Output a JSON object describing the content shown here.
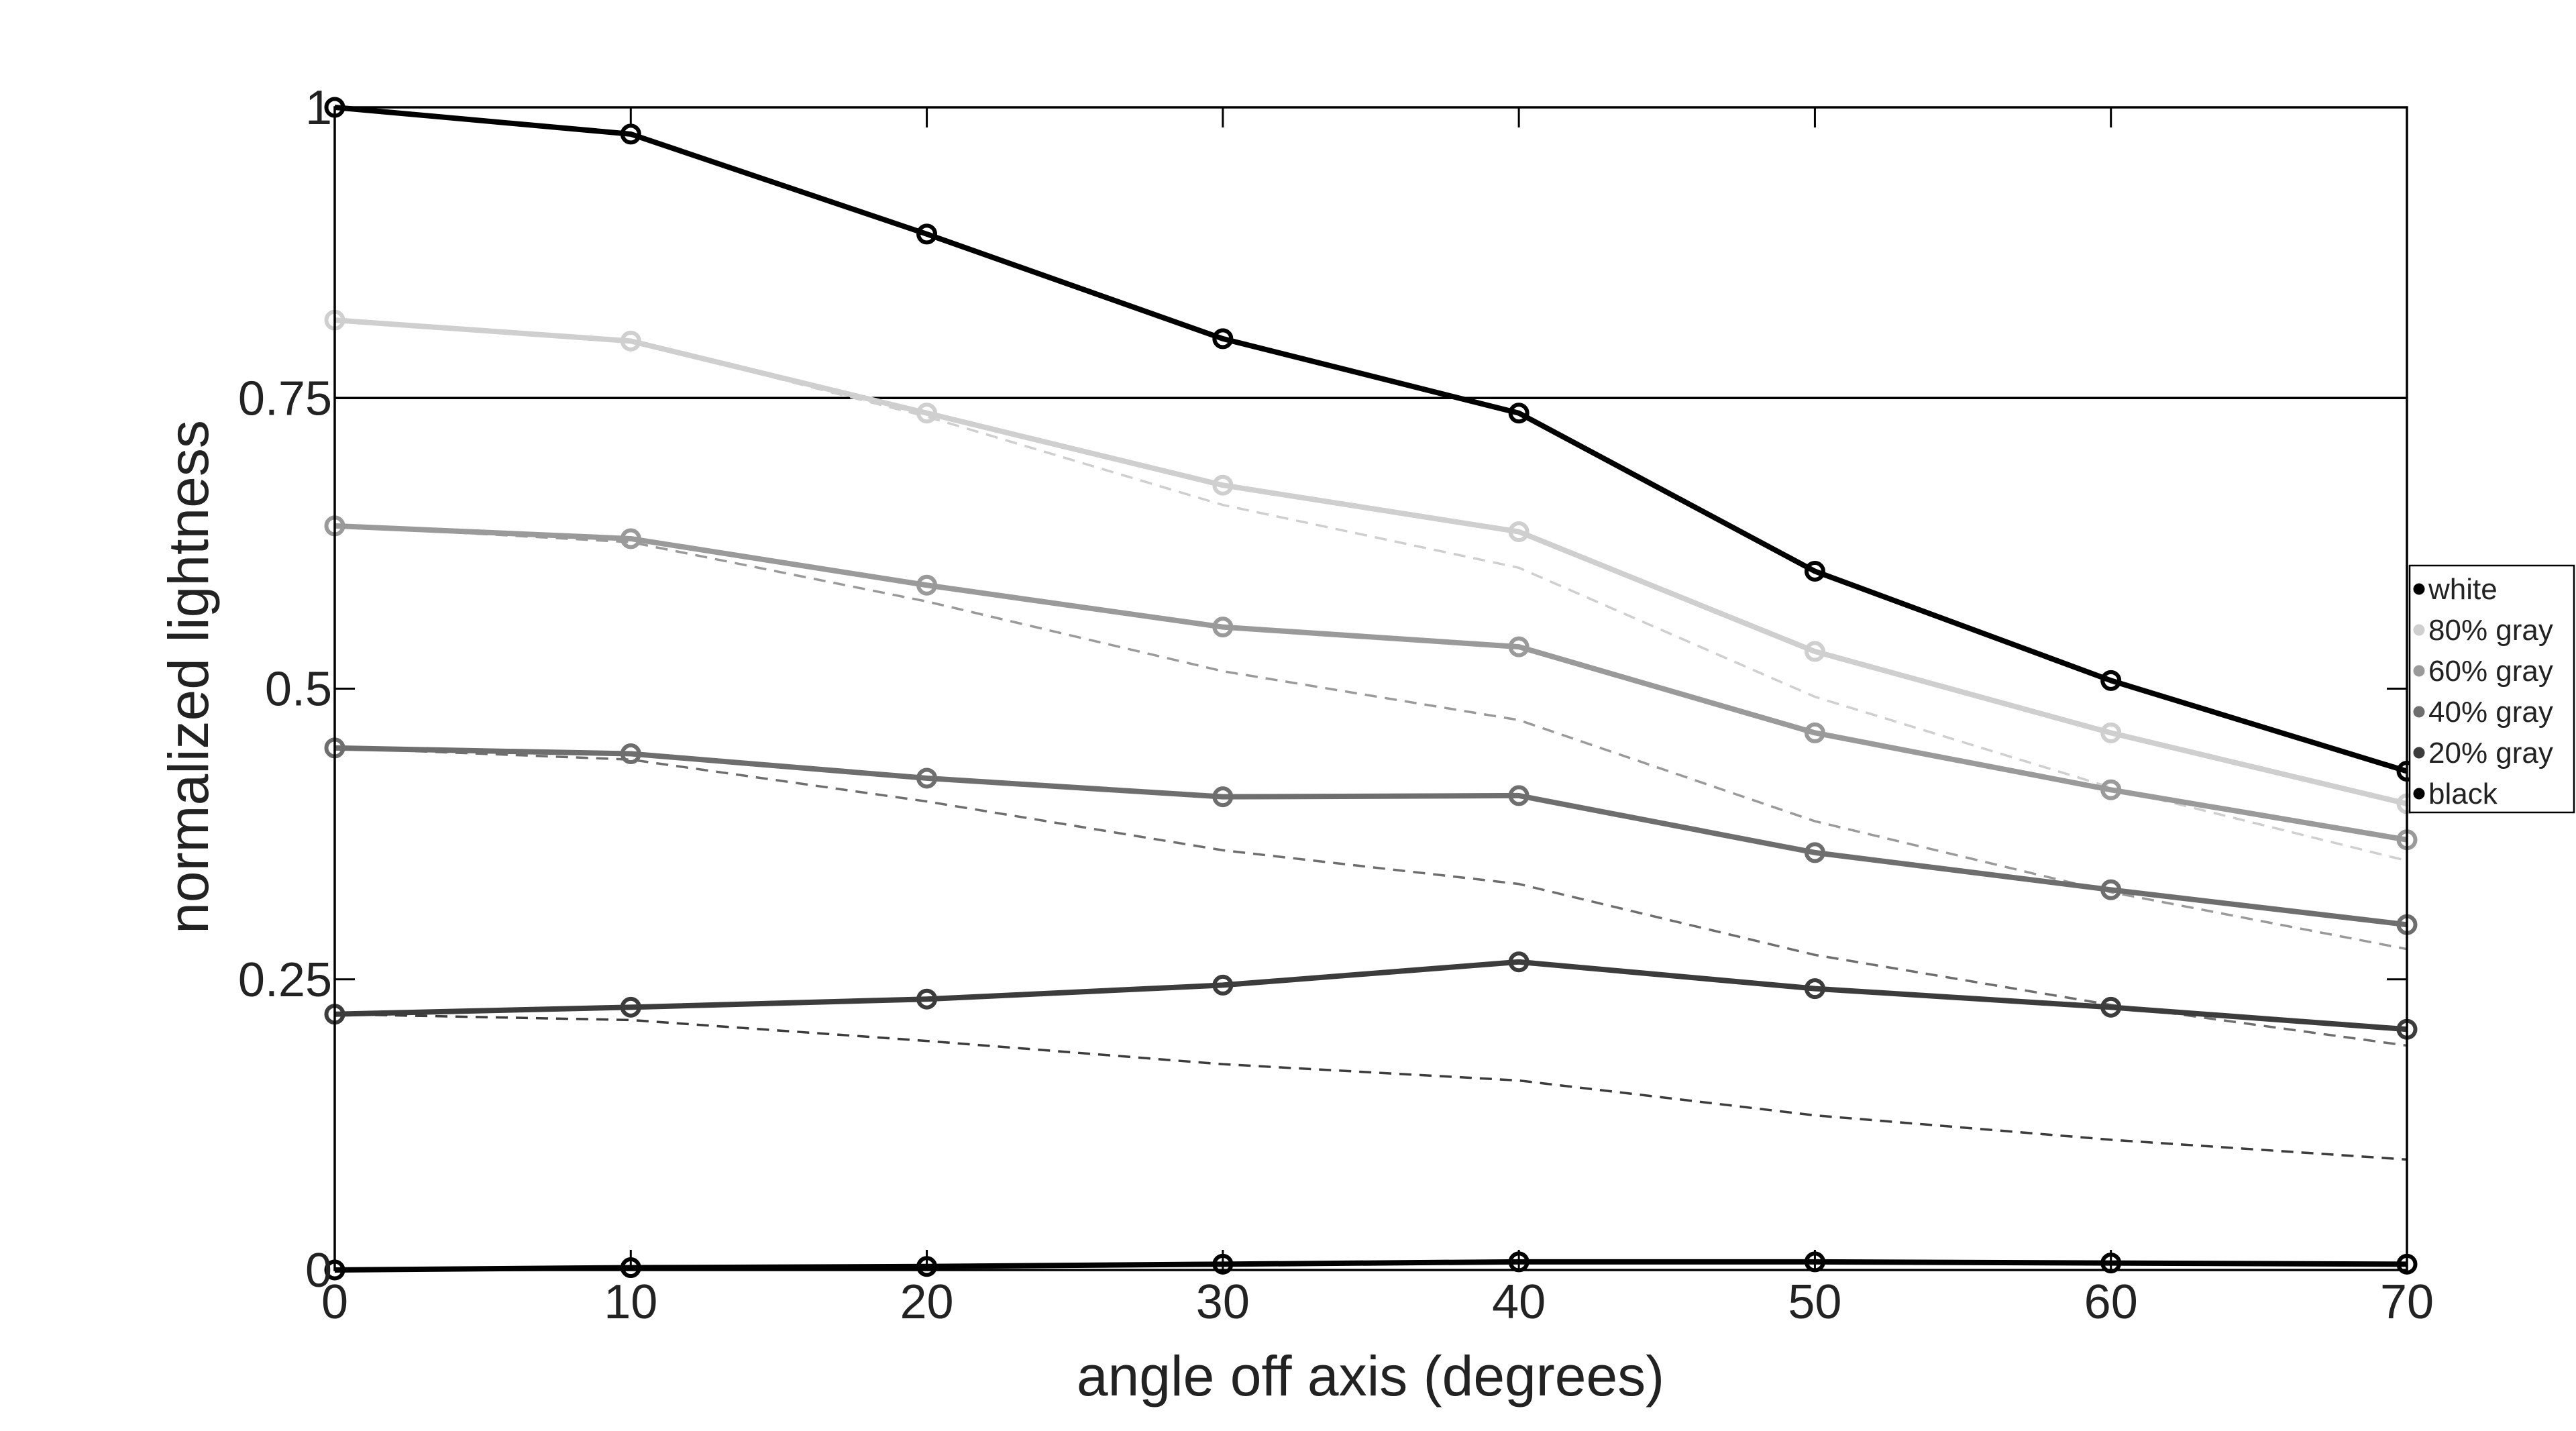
{
  "chart_data": {
    "type": "line",
    "xlabel": "angle off axis (degrees)",
    "ylabel": "normalized lightness",
    "xlim": [
      0,
      70
    ],
    "ylim": [
      0,
      1
    ],
    "xticks": [
      0,
      10,
      20,
      30,
      40,
      50,
      60,
      70
    ],
    "xtick_labels": [
      "0",
      "10",
      "20",
      "30",
      "40",
      "50",
      "60",
      "70"
    ],
    "yticks": [
      0,
      0.25,
      0.5,
      0.75,
      1
    ],
    "ytick_labels": [
      "0",
      "0.25",
      "0.5",
      "0.75",
      "1"
    ],
    "reference_line": 0.75,
    "grid": false,
    "legend_position": "right",
    "x": [
      0,
      10,
      20,
      30,
      40,
      50,
      60,
      70
    ],
    "series": [
      {
        "name": "white",
        "color": "#000000",
        "values": [
          1.0,
          0.977,
          0.891,
          0.801,
          0.737,
          0.601,
          0.507,
          0.429
        ]
      },
      {
        "name": "80% gray",
        "color": "#cfcfcf",
        "values": [
          0.817,
          0.799,
          0.737,
          0.675,
          0.635,
          0.532,
          0.462,
          0.401
        ]
      },
      {
        "name": "60% gray",
        "color": "#9a9a9a",
        "values": [
          0.64,
          0.629,
          0.589,
          0.553,
          0.536,
          0.462,
          0.413,
          0.37
        ]
      },
      {
        "name": "40% gray",
        "color": "#6e6e6e",
        "values": [
          0.449,
          0.444,
          0.423,
          0.407,
          0.408,
          0.359,
          0.327,
          0.297
        ]
      },
      {
        "name": "20% gray",
        "color": "#3c3c3c",
        "values": [
          0.22,
          0.226,
          0.233,
          0.245,
          0.265,
          0.242,
          0.226,
          0.207
        ]
      },
      {
        "name": "black",
        "color": "#000000",
        "values": [
          0.0,
          0.002,
          0.003,
          0.005,
          0.007,
          0.007,
          0.006,
          0.005
        ]
      }
    ],
    "reference_series": [
      {
        "color": "#cfcfcf",
        "values": [
          0.817,
          0.799,
          0.734,
          0.658,
          0.604,
          0.493,
          0.415,
          0.352
        ]
      },
      {
        "color": "#9a9a9a",
        "values": [
          0.64,
          0.626,
          0.575,
          0.515,
          0.473,
          0.386,
          0.325,
          0.276
        ]
      },
      {
        "color": "#6e6e6e",
        "values": [
          0.449,
          0.439,
          0.403,
          0.361,
          0.332,
          0.271,
          0.228,
          0.193
        ]
      },
      {
        "color": "#3c3c3c",
        "values": [
          0.22,
          0.215,
          0.197,
          0.177,
          0.163,
          0.133,
          0.112,
          0.095
        ]
      }
    ]
  }
}
